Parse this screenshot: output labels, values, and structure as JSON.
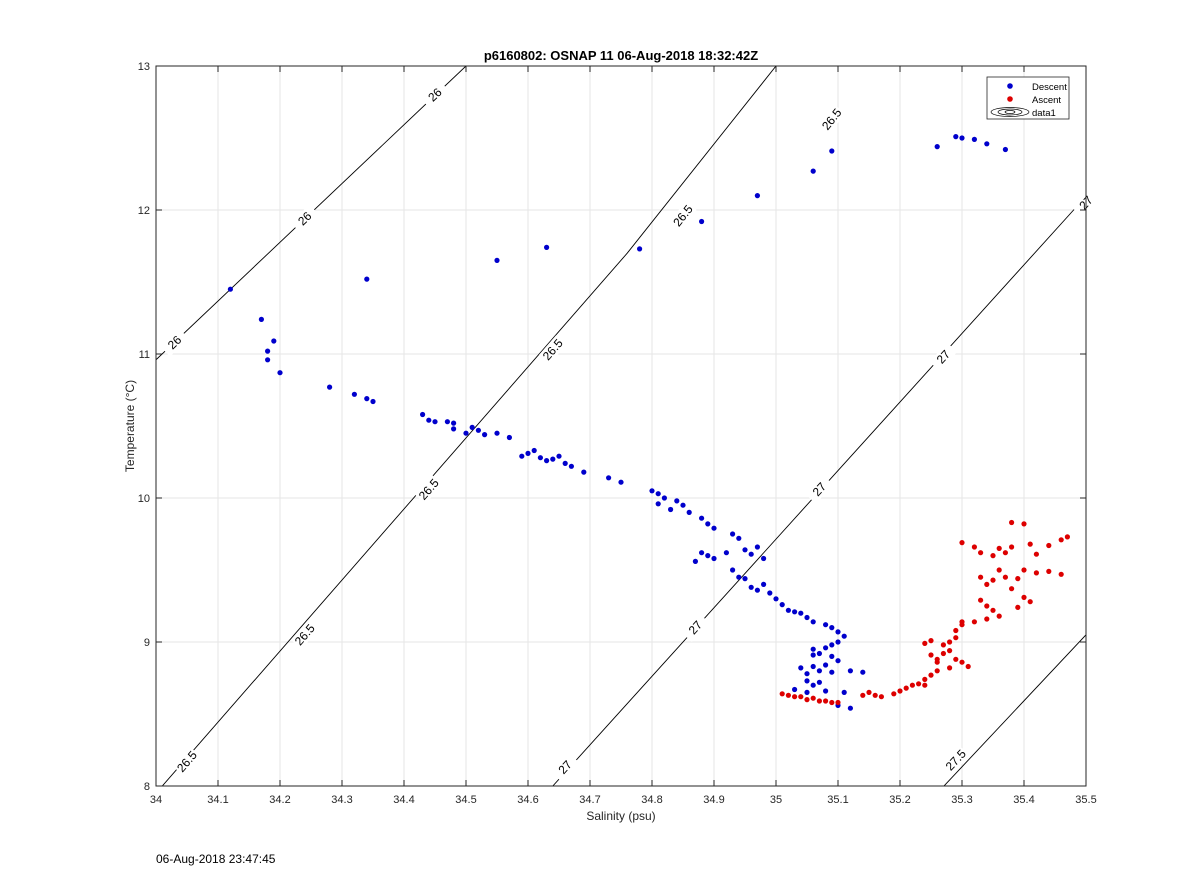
{
  "chart_data": {
    "type": "scatter",
    "title": "p6160802: OSNAP 11 06-Aug-2018 18:32:42Z",
    "xlabel": "Salinity (psu)",
    "ylabel": "Temperature (°C)",
    "xlim": [
      34,
      35.5
    ],
    "ylim": [
      8,
      13
    ],
    "xticks": [
      "34",
      "34.1",
      "34.2",
      "34.3",
      "34.4",
      "34.5",
      "34.6",
      "34.7",
      "34.8",
      "34.9",
      "35",
      "35.1",
      "35.2",
      "35.3",
      "35.4",
      "35.5"
    ],
    "yticks": [
      "8",
      "9",
      "10",
      "11",
      "12",
      "13"
    ],
    "grid": true,
    "legend": {
      "position": "top-right",
      "entries": [
        "Descent",
        "Ascent",
        "data1"
      ]
    },
    "contours": [
      {
        "level": "26",
        "points": [
          [
            34.0,
            10.96
          ],
          [
            34.5,
            13.0
          ]
        ],
        "labels": [
          [
            34.03,
            11.08
          ],
          [
            34.24,
            11.94
          ],
          [
            34.45,
            12.8
          ]
        ]
      },
      {
        "level": "26.5",
        "points": [
          [
            34.0,
            7.95
          ],
          [
            34.76,
            11.7
          ],
          [
            35.0,
            13.0
          ]
        ],
        "labels": [
          [
            34.05,
            8.17
          ],
          [
            34.24,
            9.05
          ],
          [
            34.44,
            10.06
          ],
          [
            34.64,
            11.03
          ],
          [
            34.85,
            11.96
          ],
          [
            35.09,
            12.63
          ]
        ]
      },
      {
        "level": "27",
        "points": [
          [
            34.64,
            8.0
          ],
          [
            35.48,
            12.0
          ],
          [
            35.5,
            12.1
          ]
        ],
        "labels": [
          [
            34.66,
            8.13
          ],
          [
            34.87,
            9.1
          ],
          [
            35.07,
            10.06
          ],
          [
            35.27,
            10.98
          ],
          [
            35.5,
            12.05
          ]
        ]
      },
      {
        "level": "27.5",
        "points": [
          [
            35.26,
            7.95
          ],
          [
            35.5,
            9.05
          ]
        ],
        "labels": [
          [
            35.29,
            8.18
          ]
        ]
      }
    ],
    "series": [
      {
        "name": "Descent",
        "color": "#0000cc",
        "points": [
          [
            34.12,
            11.45
          ],
          [
            34.17,
            11.24
          ],
          [
            34.18,
            11.02
          ],
          [
            34.19,
            11.09
          ],
          [
            34.18,
            10.96
          ],
          [
            34.2,
            10.87
          ],
          [
            34.28,
            10.77
          ],
          [
            34.32,
            10.72
          ],
          [
            34.34,
            10.69
          ],
          [
            34.35,
            10.67
          ],
          [
            34.34,
            11.52
          ],
          [
            34.55,
            11.65
          ],
          [
            34.63,
            11.74
          ],
          [
            34.78,
            11.73
          ],
          [
            34.88,
            11.92
          ],
          [
            34.97,
            12.1
          ],
          [
            35.06,
            12.27
          ],
          [
            35.09,
            12.41
          ],
          [
            35.26,
            12.44
          ],
          [
            35.29,
            12.51
          ],
          [
            35.3,
            12.5
          ],
          [
            35.32,
            12.49
          ],
          [
            35.34,
            12.46
          ],
          [
            35.37,
            12.42
          ],
          [
            34.43,
            10.58
          ],
          [
            34.44,
            10.54
          ],
          [
            34.45,
            10.53
          ],
          [
            34.47,
            10.53
          ],
          [
            34.48,
            10.52
          ],
          [
            34.48,
            10.48
          ],
          [
            34.5,
            10.45
          ],
          [
            34.51,
            10.49
          ],
          [
            34.52,
            10.47
          ],
          [
            34.53,
            10.44
          ],
          [
            34.55,
            10.45
          ],
          [
            34.57,
            10.42
          ],
          [
            34.59,
            10.29
          ],
          [
            34.6,
            10.31
          ],
          [
            34.61,
            10.33
          ],
          [
            34.62,
            10.28
          ],
          [
            34.63,
            10.26
          ],
          [
            34.64,
            10.27
          ],
          [
            34.65,
            10.29
          ],
          [
            34.66,
            10.24
          ],
          [
            34.67,
            10.22
          ],
          [
            34.69,
            10.18
          ],
          [
            34.73,
            10.14
          ],
          [
            34.75,
            10.11
          ],
          [
            34.8,
            10.05
          ],
          [
            34.81,
            10.03
          ],
          [
            34.82,
            10.0
          ],
          [
            34.81,
            9.96
          ],
          [
            34.83,
            9.92
          ],
          [
            34.84,
            9.98
          ],
          [
            34.85,
            9.95
          ],
          [
            34.86,
            9.9
          ],
          [
            34.88,
            9.86
          ],
          [
            34.89,
            9.82
          ],
          [
            34.9,
            9.79
          ],
          [
            34.88,
            9.62
          ],
          [
            34.87,
            9.56
          ],
          [
            34.89,
            9.6
          ],
          [
            34.9,
            9.58
          ],
          [
            34.92,
            9.62
          ],
          [
            34.93,
            9.75
          ],
          [
            34.94,
            9.72
          ],
          [
            34.95,
            9.64
          ],
          [
            34.96,
            9.61
          ],
          [
            34.97,
            9.66
          ],
          [
            34.98,
            9.58
          ],
          [
            34.93,
            9.5
          ],
          [
            34.94,
            9.45
          ],
          [
            34.95,
            9.44
          ],
          [
            34.96,
            9.38
          ],
          [
            34.97,
            9.36
          ],
          [
            34.98,
            9.4
          ],
          [
            34.99,
            9.34
          ],
          [
            35.0,
            9.3
          ],
          [
            35.01,
            9.26
          ],
          [
            35.02,
            9.22
          ],
          [
            35.03,
            9.21
          ],
          [
            35.04,
            9.2
          ],
          [
            35.05,
            9.17
          ],
          [
            35.06,
            9.14
          ],
          [
            35.08,
            9.12
          ],
          [
            35.09,
            9.1
          ],
          [
            35.1,
            9.07
          ],
          [
            35.11,
            9.04
          ],
          [
            35.1,
            9.0
          ],
          [
            35.09,
            8.98
          ],
          [
            35.08,
            8.96
          ],
          [
            35.06,
            8.95
          ],
          [
            35.06,
            8.91
          ],
          [
            35.07,
            8.92
          ],
          [
            35.09,
            8.9
          ],
          [
            35.1,
            8.87
          ],
          [
            35.08,
            8.84
          ],
          [
            35.06,
            8.83
          ],
          [
            35.04,
            8.82
          ],
          [
            35.05,
            8.78
          ],
          [
            35.07,
            8.8
          ],
          [
            35.09,
            8.79
          ],
          [
            35.12,
            8.8
          ],
          [
            35.14,
            8.79
          ],
          [
            35.05,
            8.73
          ],
          [
            35.06,
            8.7
          ],
          [
            35.07,
            8.72
          ],
          [
            35.03,
            8.67
          ],
          [
            35.05,
            8.65
          ],
          [
            35.08,
            8.66
          ],
          [
            35.11,
            8.65
          ],
          [
            35.12,
            8.54
          ],
          [
            35.1,
            8.56
          ]
        ]
      },
      {
        "name": "Ascent",
        "color": "#dd0000",
        "points": [
          [
            35.01,
            8.64
          ],
          [
            35.02,
            8.63
          ],
          [
            35.03,
            8.62
          ],
          [
            35.04,
            8.62
          ],
          [
            35.05,
            8.6
          ],
          [
            35.06,
            8.61
          ],
          [
            35.07,
            8.59
          ],
          [
            35.08,
            8.59
          ],
          [
            35.09,
            8.58
          ],
          [
            35.1,
            8.58
          ],
          [
            35.14,
            8.63
          ],
          [
            35.15,
            8.65
          ],
          [
            35.16,
            8.63
          ],
          [
            35.17,
            8.62
          ],
          [
            35.19,
            8.64
          ],
          [
            35.2,
            8.66
          ],
          [
            35.21,
            8.68
          ],
          [
            35.22,
            8.7
          ],
          [
            35.23,
            8.71
          ],
          [
            35.24,
            8.7
          ],
          [
            35.24,
            8.74
          ],
          [
            35.25,
            8.77
          ],
          [
            35.26,
            8.8
          ],
          [
            35.26,
            8.88
          ],
          [
            35.27,
            8.92
          ],
          [
            35.28,
            8.94
          ],
          [
            35.27,
            8.98
          ],
          [
            35.28,
            9.0
          ],
          [
            35.29,
            9.03
          ],
          [
            35.29,
            9.08
          ],
          [
            35.3,
            9.12
          ],
          [
            35.3,
            9.14
          ],
          [
            35.29,
            8.88
          ],
          [
            35.3,
            8.86
          ],
          [
            35.31,
            8.83
          ],
          [
            35.28,
            8.82
          ],
          [
            35.26,
            8.86
          ],
          [
            35.25,
            8.91
          ],
          [
            35.24,
            8.99
          ],
          [
            35.25,
            9.01
          ],
          [
            35.3,
            9.69
          ],
          [
            35.32,
            9.66
          ],
          [
            35.33,
            9.62
          ],
          [
            35.35,
            9.6
          ],
          [
            35.36,
            9.65
          ],
          [
            35.37,
            9.62
          ],
          [
            35.38,
            9.66
          ],
          [
            35.38,
            9.83
          ],
          [
            35.4,
            9.82
          ],
          [
            35.41,
            9.68
          ],
          [
            35.42,
            9.61
          ],
          [
            35.44,
            9.67
          ],
          [
            35.46,
            9.71
          ],
          [
            35.47,
            9.73
          ],
          [
            35.33,
            9.45
          ],
          [
            35.34,
            9.4
          ],
          [
            35.35,
            9.43
          ],
          [
            35.36,
            9.5
          ],
          [
            35.37,
            9.45
          ],
          [
            35.38,
            9.37
          ],
          [
            35.39,
            9.44
          ],
          [
            35.4,
            9.5
          ],
          [
            35.42,
            9.48
          ],
          [
            35.44,
            9.49
          ],
          [
            35.46,
            9.47
          ],
          [
            35.33,
            9.29
          ],
          [
            35.34,
            9.25
          ],
          [
            35.35,
            9.22
          ],
          [
            35.36,
            9.18
          ],
          [
            35.34,
            9.16
          ],
          [
            35.32,
            9.14
          ],
          [
            35.39,
            9.24
          ],
          [
            35.4,
            9.31
          ],
          [
            35.41,
            9.28
          ]
        ]
      }
    ]
  },
  "footer": {
    "timestamp": "06-Aug-2018 23:47:45"
  }
}
